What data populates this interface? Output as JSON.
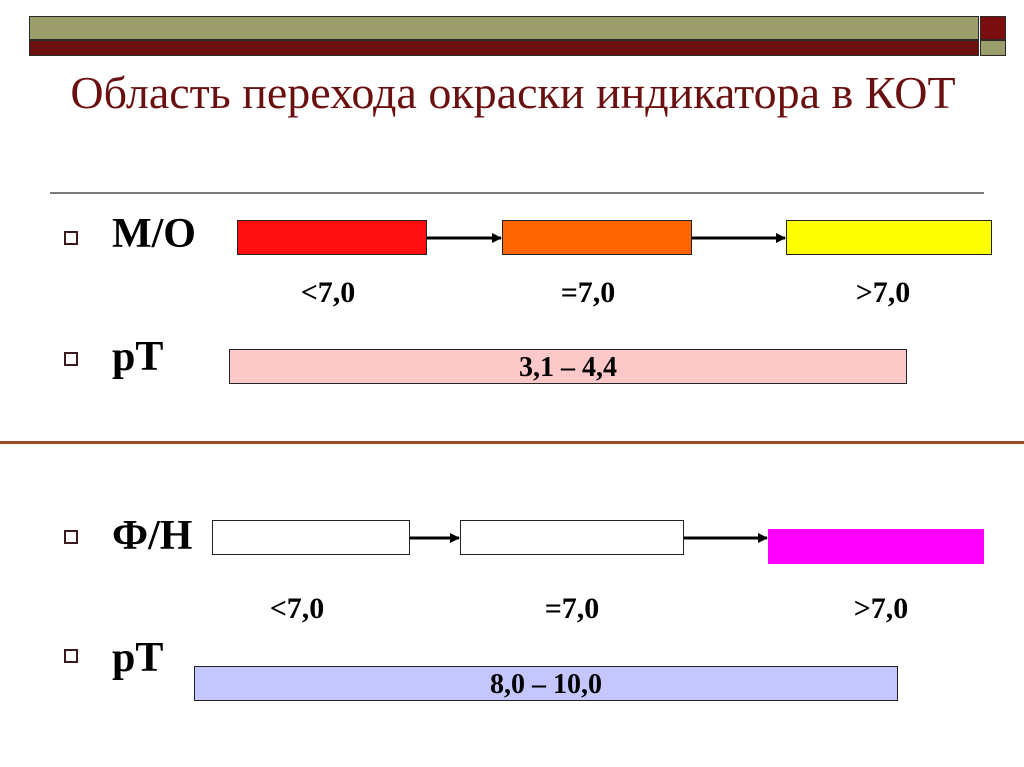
{
  "slide": {
    "title": "Область перехода окраски индикатора в КОТ",
    "colors": {
      "header_olive": "#9b9d6c",
      "header_maroon": "#6b0f0f",
      "title": "#6b1010",
      "separator": "#9b4a28"
    }
  },
  "methyl_orange": {
    "label": "М/О",
    "ph_labels": [
      "<7,0",
      "=7,0",
      ">7,0"
    ],
    "box_colors": [
      "#ff0f0f",
      "#ff6600",
      "#ffff00"
    ]
  },
  "mo_transition": {
    "label": "рТ",
    "range": "3,1 – 4,4",
    "fill": "#fcc8c8"
  },
  "phenolphthalein": {
    "label": "Ф/Н",
    "ph_labels": [
      "<7,0",
      "=7,0",
      ">7,0"
    ],
    "box_colors": [
      "#ffffff",
      "#ffffff",
      "#ff00ff"
    ]
  },
  "pp_transition": {
    "label": "рТ",
    "range": "8,0 – 10,0",
    "fill": "#c6c6ff"
  }
}
